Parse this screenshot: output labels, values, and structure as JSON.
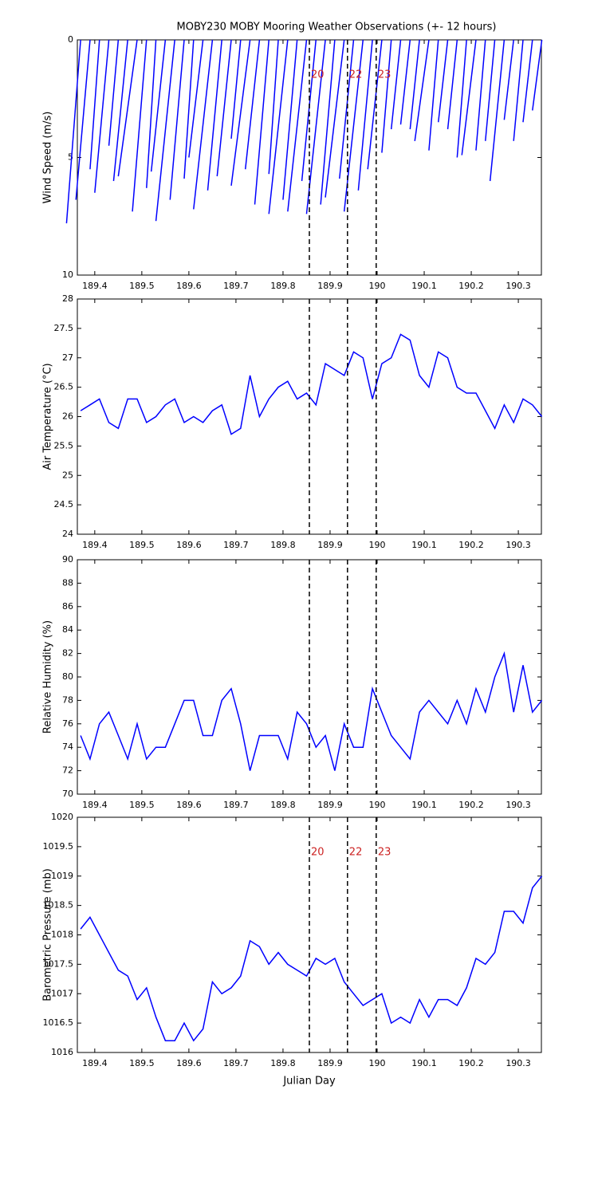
{
  "markers": [
    {
      "x": 189.856,
      "label": "20"
    },
    {
      "x": 189.937,
      "label": "22"
    },
    {
      "x": 189.998,
      "label": "23"
    }
  ],
  "chart_data": [
    {
      "type": "stick",
      "title": "MOBY230 MOBY Mooring Weather Observations (+- 12 hours)",
      "ylabel": "Wind Speed (m/s)",
      "color": "#0000ff",
      "y_reversed": true,
      "show_marker_labels": true,
      "x": [
        189.37,
        189.39,
        189.41,
        189.43,
        189.45,
        189.47,
        189.49,
        189.51,
        189.53,
        189.55,
        189.57,
        189.59,
        189.61,
        189.63,
        189.65,
        189.67,
        189.69,
        189.71,
        189.73,
        189.75,
        189.77,
        189.79,
        189.81,
        189.83,
        189.85,
        189.87,
        189.89,
        189.91,
        189.93,
        189.95,
        189.97,
        189.99,
        190.01,
        190.03,
        190.05,
        190.07,
        190.09,
        190.11,
        190.13,
        190.15,
        190.17,
        190.19,
        190.21,
        190.23,
        190.25,
        190.27,
        190.29,
        190.31,
        190.33,
        190.35
      ],
      "dx": [
        -0.03,
        -0.03,
        -0.02,
        -0.03,
        -0.02,
        -0.03,
        -0.04,
        -0.03,
        -0.02,
        -0.03,
        -0.04,
        -0.03,
        -0.02,
        -0.03,
        -0.04,
        -0.03,
        -0.03,
        -0.02,
        -0.04,
        -0.03,
        -0.03,
        -0.02,
        -0.04,
        -0.03,
        -0.04,
        -0.03,
        -0.04,
        -0.03,
        -0.04,
        -0.03,
        -0.04,
        -0.03,
        -0.03,
        -0.02,
        -0.02,
        -0.02,
        -0.02,
        -0.03,
        -0.02,
        -0.02,
        -0.02,
        -0.02,
        -0.03,
        -0.02,
        -0.02,
        -0.03,
        -0.02,
        -0.02,
        -0.02,
        -0.02
      ],
      "values": [
        7.8,
        6.8,
        5.5,
        6.5,
        4.5,
        6.0,
        5.8,
        7.3,
        6.3,
        5.6,
        7.7,
        6.8,
        5.9,
        5.0,
        7.2,
        6.4,
        5.8,
        4.2,
        6.2,
        5.5,
        7.0,
        5.7,
        7.4,
        6.8,
        7.3,
        6.0,
        7.4,
        7.0,
        6.7,
        5.9,
        7.3,
        6.4,
        5.5,
        4.8,
        3.8,
        3.6,
        3.8,
        4.3,
        4.7,
        3.5,
        3.8,
        5.0,
        4.9,
        4.7,
        4.3,
        6.0,
        3.4,
        4.3,
        3.5,
        3.0
      ],
      "xlim": [
        189.363,
        190.349
      ],
      "xticks": [
        189.4,
        189.5,
        189.6,
        189.7,
        189.8,
        189.9,
        190,
        190.1,
        190.2,
        190.3
      ],
      "ylim": [
        0,
        10
      ],
      "yticks": [
        0,
        5,
        10
      ]
    },
    {
      "type": "line",
      "ylabel": "Air Temperature (°C)",
      "color": "#0000ff",
      "x": [
        189.37,
        189.39,
        189.41,
        189.43,
        189.45,
        189.47,
        189.49,
        189.51,
        189.53,
        189.55,
        189.57,
        189.59,
        189.61,
        189.63,
        189.65,
        189.67,
        189.69,
        189.71,
        189.73,
        189.75,
        189.77,
        189.79,
        189.81,
        189.83,
        189.85,
        189.87,
        189.89,
        189.91,
        189.93,
        189.95,
        189.97,
        189.99,
        190.01,
        190.03,
        190.05,
        190.07,
        190.09,
        190.11,
        190.13,
        190.15,
        190.17,
        190.19,
        190.21,
        190.23,
        190.25,
        190.27,
        190.29,
        190.31,
        190.33,
        190.35
      ],
      "values": [
        26.1,
        26.2,
        26.3,
        25.9,
        25.8,
        26.3,
        26.3,
        25.9,
        26.0,
        26.2,
        26.3,
        25.9,
        26.0,
        25.9,
        26.1,
        26.2,
        25.7,
        25.8,
        26.7,
        26.0,
        26.3,
        26.5,
        26.6,
        26.3,
        26.4,
        26.2,
        26.9,
        26.8,
        26.7,
        27.1,
        27.0,
        26.3,
        26.9,
        27.0,
        27.4,
        27.3,
        26.7,
        26.5,
        27.1,
        27.0,
        26.5,
        26.4,
        26.4,
        26.1,
        25.8,
        26.2,
        25.9,
        26.3,
        26.2,
        26.0
      ],
      "xlim": [
        189.363,
        190.349
      ],
      "xticks": [
        189.4,
        189.5,
        189.6,
        189.7,
        189.8,
        189.9,
        190,
        190.1,
        190.2,
        190.3
      ],
      "ylim": [
        24,
        28
      ],
      "yticks": [
        24,
        24.5,
        25,
        25.5,
        26,
        26.5,
        27,
        27.5,
        28
      ]
    },
    {
      "type": "line",
      "ylabel": "Relative Humidity (%)",
      "color": "#0000ff",
      "x": [
        189.37,
        189.39,
        189.41,
        189.43,
        189.45,
        189.47,
        189.49,
        189.51,
        189.53,
        189.55,
        189.57,
        189.59,
        189.61,
        189.63,
        189.65,
        189.67,
        189.69,
        189.71,
        189.73,
        189.75,
        189.77,
        189.79,
        189.81,
        189.83,
        189.85,
        189.87,
        189.89,
        189.91,
        189.93,
        189.95,
        189.97,
        189.99,
        190.01,
        190.03,
        190.05,
        190.07,
        190.09,
        190.11,
        190.13,
        190.15,
        190.17,
        190.19,
        190.21,
        190.23,
        190.25,
        190.27,
        190.29,
        190.31,
        190.33,
        190.35
      ],
      "values": [
        75,
        73,
        76,
        77,
        75,
        73,
        76,
        73,
        74,
        74,
        76,
        78,
        78,
        75,
        75,
        78,
        79,
        76,
        72,
        75,
        75,
        75,
        73,
        77,
        76,
        74,
        75,
        72,
        76,
        74,
        74,
        79,
        77,
        75,
        74,
        73,
        77,
        78,
        77,
        76,
        78,
        76,
        79,
        77,
        80,
        82,
        77,
        81,
        77,
        78
      ],
      "xlim": [
        189.363,
        190.349
      ],
      "xticks": [
        189.4,
        189.5,
        189.6,
        189.7,
        189.8,
        189.9,
        190,
        190.1,
        190.2,
        190.3
      ],
      "ylim": [
        70,
        90
      ],
      "yticks": [
        70,
        72,
        74,
        76,
        78,
        80,
        82,
        84,
        86,
        88,
        90
      ]
    },
    {
      "type": "line",
      "ylabel": "Barometric Pressure (mb)",
      "xlabel": "Julian Day",
      "color": "#0000ff",
      "show_marker_labels": true,
      "x": [
        189.37,
        189.39,
        189.41,
        189.43,
        189.45,
        189.47,
        189.49,
        189.51,
        189.53,
        189.55,
        189.57,
        189.59,
        189.61,
        189.63,
        189.65,
        189.67,
        189.69,
        189.71,
        189.73,
        189.75,
        189.77,
        189.79,
        189.81,
        189.83,
        189.85,
        189.87,
        189.89,
        189.91,
        189.93,
        189.95,
        189.97,
        189.99,
        190.01,
        190.03,
        190.05,
        190.07,
        190.09,
        190.11,
        190.13,
        190.15,
        190.17,
        190.19,
        190.21,
        190.23,
        190.25,
        190.27,
        190.29,
        190.31,
        190.33,
        190.35
      ],
      "values": [
        1018.1,
        1018.3,
        1018.0,
        1017.7,
        1017.4,
        1017.3,
        1016.9,
        1017.1,
        1016.6,
        1016.2,
        1016.2,
        1016.5,
        1016.2,
        1016.4,
        1017.2,
        1017.0,
        1017.1,
        1017.3,
        1017.9,
        1017.8,
        1017.5,
        1017.7,
        1017.5,
        1017.4,
        1017.3,
        1017.6,
        1017.5,
        1017.6,
        1017.2,
        1017.0,
        1016.8,
        1016.9,
        1017.0,
        1016.5,
        1016.6,
        1016.5,
        1016.9,
        1016.6,
        1016.9,
        1016.9,
        1016.8,
        1017.1,
        1017.6,
        1017.5,
        1017.7,
        1018.4,
        1018.4,
        1018.2,
        1018.8,
        1019.0
      ],
      "xlim": [
        189.363,
        190.349
      ],
      "xticks": [
        189.4,
        189.5,
        189.6,
        189.7,
        189.8,
        189.9,
        190,
        190.1,
        190.2,
        190.3
      ],
      "ylim": [
        1016,
        1020
      ],
      "yticks": [
        1016,
        1016.5,
        1017,
        1017.5,
        1018,
        1018.5,
        1019,
        1019.5,
        1020
      ]
    }
  ]
}
